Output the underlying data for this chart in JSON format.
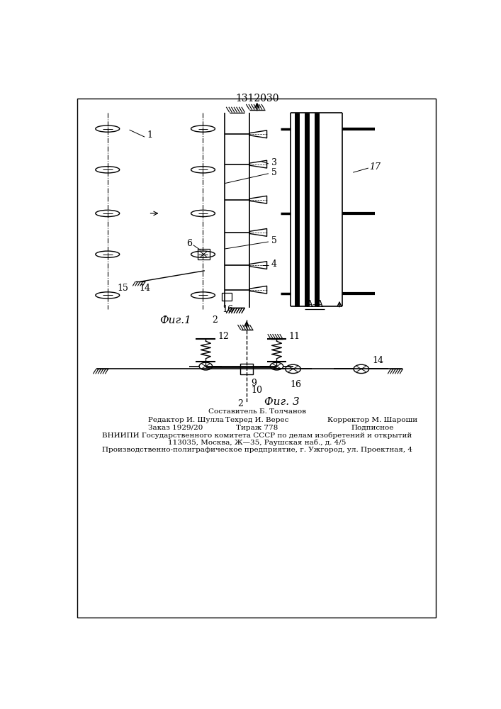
{
  "title": "1312030",
  "fig1_label": "Фиг.1",
  "fig3_label": "Фиг. 3",
  "aa_label": "A–A",
  "footer_line1": "Составитель Б. Толчанов",
  "footer_line2_left": "Редактор И. Шулла",
  "footer_line2_mid": "Техред И. Верес",
  "footer_line2_right": "Корректор М. Шароши",
  "footer_line3_left": "Заказ 1929/20",
  "footer_line3_mid": "Тираж 778",
  "footer_line3_right": "Подписное",
  "footer_line4": "ВНИИПИ Государственного комитета СССР по делам изобретений и открытий",
  "footer_line5": "113035, Москва, Ж—35, Раушская наб., д. 4/5",
  "footer_line6": "Производственно-полиграфическое предприятие, г. Ужгород, ул. Проектная, 4",
  "bg_color": "#ffffff",
  "line_color": "#000000"
}
